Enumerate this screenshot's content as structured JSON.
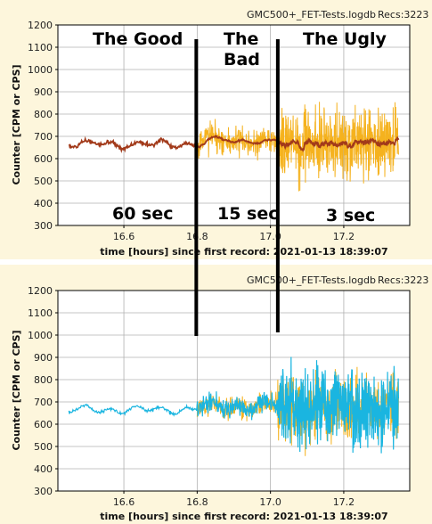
{
  "colors": {
    "background": "#fdf6dc",
    "plot_area": "#ffffff",
    "grid": "#b0b0b0",
    "separator": "#ffffff",
    "moving_average": "#a23a1a",
    "raw_data_top": "#f5b21e",
    "raw_data_bottom_orange": "#f5b21e",
    "raw_data_bottom_cyan": "#1ab5e0",
    "divider_line": "#000000"
  },
  "annotations": {
    "good": "The Good",
    "bad_1": "The",
    "bad_2": "Bad",
    "ugly": "The Ugly",
    "interval_good": "60 sec",
    "interval_bad": "15 sec",
    "interval_ugly": "3 sec"
  },
  "dividers_x": [
    16.8,
    17.02
  ],
  "chart_data": [
    {
      "type": "line",
      "file_label": "GMC500+_FET-Tests.logdb",
      "recs_label": "Recs:3223",
      "xlabel": "time [hours] since first record: 2021-01-13 18:39:07",
      "ylabel": "Counter  [CPM or CPS]",
      "xlim": [
        16.42,
        17.38
      ],
      "ylim": [
        300,
        1200
      ],
      "x_ticks": [
        "16.6",
        "16.8",
        "17.0",
        "17.2"
      ],
      "y_ticks": [
        "300",
        "400",
        "500",
        "600",
        "700",
        "800",
        "900",
        "1000",
        "1100",
        "1200"
      ],
      "grid": true,
      "segments": [
        {
          "x_start": 16.45,
          "x_end": 16.8,
          "interval_sec": 60,
          "mean": 665,
          "spread": 15
        },
        {
          "x_start": 16.8,
          "x_end": 17.02,
          "interval_sec": 15,
          "mean": 680,
          "spread": 110
        },
        {
          "x_start": 17.02,
          "x_end": 17.35,
          "interval_sec": 3,
          "mean": 670,
          "spread": 260
        }
      ],
      "series": [
        {
          "color_key": "raw_data_top"
        },
        {
          "color_key": "moving_average"
        }
      ]
    },
    {
      "type": "line",
      "file_label": "GMC500+_FET-Tests.logdb",
      "recs_label": "Recs:3223",
      "xlabel": "time [hours] since first record: 2021-01-13 18:39:07",
      "ylabel": "Counter  [CPM or CPS]",
      "xlim": [
        16.42,
        17.38
      ],
      "ylim": [
        300,
        1200
      ],
      "x_ticks": [
        "16.6",
        "16.8",
        "17.0",
        "17.2"
      ],
      "y_ticks": [
        "300",
        "400",
        "500",
        "600",
        "700",
        "800",
        "900",
        "1000",
        "1100",
        "1200"
      ],
      "grid": true,
      "segments": [
        {
          "x_start": 16.45,
          "x_end": 16.8,
          "interval_sec": 60,
          "mean": 665,
          "spread": 15
        },
        {
          "x_start": 16.8,
          "x_end": 17.02,
          "interval_sec": 15,
          "mean": 680,
          "spread": 80
        },
        {
          "x_start": 17.02,
          "x_end": 17.35,
          "interval_sec": 3,
          "mean": 670,
          "spread": 230
        }
      ],
      "series": [
        {
          "color_key": "raw_data_bottom_orange"
        },
        {
          "color_key": "raw_data_bottom_cyan"
        }
      ]
    }
  ]
}
